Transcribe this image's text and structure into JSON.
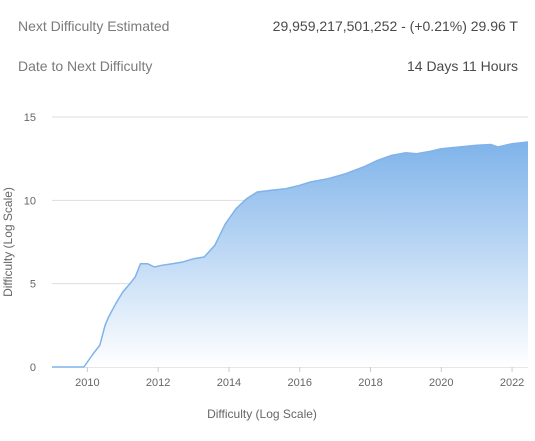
{
  "stats": {
    "next_difficulty_label": "Next Difficulty Estimated",
    "next_difficulty_value": "29,959,217,501,252 - (+0.21%) 29.96 T",
    "date_label": "Date to Next Difficulty",
    "date_value": "14 Days 11 Hours"
  },
  "chart_data": {
    "type": "area",
    "title": "",
    "xlabel": "Difficulty (Log Scale)",
    "ylabel": "Difficulty (Log Scale)",
    "xlim": [
      2009.0,
      2022.45
    ],
    "ylim": [
      0,
      15
    ],
    "x_ticks": [
      2010,
      2012,
      2014,
      2016,
      2018,
      2020,
      2022
    ],
    "y_ticks": [
      0,
      5,
      10,
      15
    ],
    "grid": true,
    "legend": "none",
    "fill_color_top": "#7fb3ea",
    "fill_color_bottom": "#ffffff",
    "line_color": "#7fb3ea",
    "x": [
      2009.0,
      2009.9,
      2010.0,
      2010.2,
      2010.35,
      2010.5,
      2010.6,
      2010.8,
      2011.0,
      2011.2,
      2011.35,
      2011.5,
      2011.7,
      2011.9,
      2012.1,
      2012.4,
      2012.7,
      2013.0,
      2013.3,
      2013.6,
      2013.9,
      2014.2,
      2014.5,
      2014.8,
      2015.2,
      2015.6,
      2016.0,
      2016.3,
      2016.8,
      2017.3,
      2017.8,
      2018.2,
      2018.6,
      2019.0,
      2019.3,
      2019.7,
      2020.0,
      2020.5,
      2021.0,
      2021.4,
      2021.6,
      2022.0,
      2022.45
    ],
    "y": [
      0,
      0,
      0.3,
      0.9,
      1.3,
      2.5,
      3.0,
      3.8,
      4.5,
      5.0,
      5.4,
      6.2,
      6.2,
      6.0,
      6.1,
      6.2,
      6.3,
      6.5,
      6.6,
      7.3,
      8.6,
      9.5,
      10.1,
      10.5,
      10.6,
      10.7,
      10.9,
      11.1,
      11.3,
      11.6,
      12.0,
      12.4,
      12.7,
      12.85,
      12.8,
      12.95,
      13.1,
      13.2,
      13.3,
      13.35,
      13.2,
      13.4,
      13.5
    ]
  }
}
